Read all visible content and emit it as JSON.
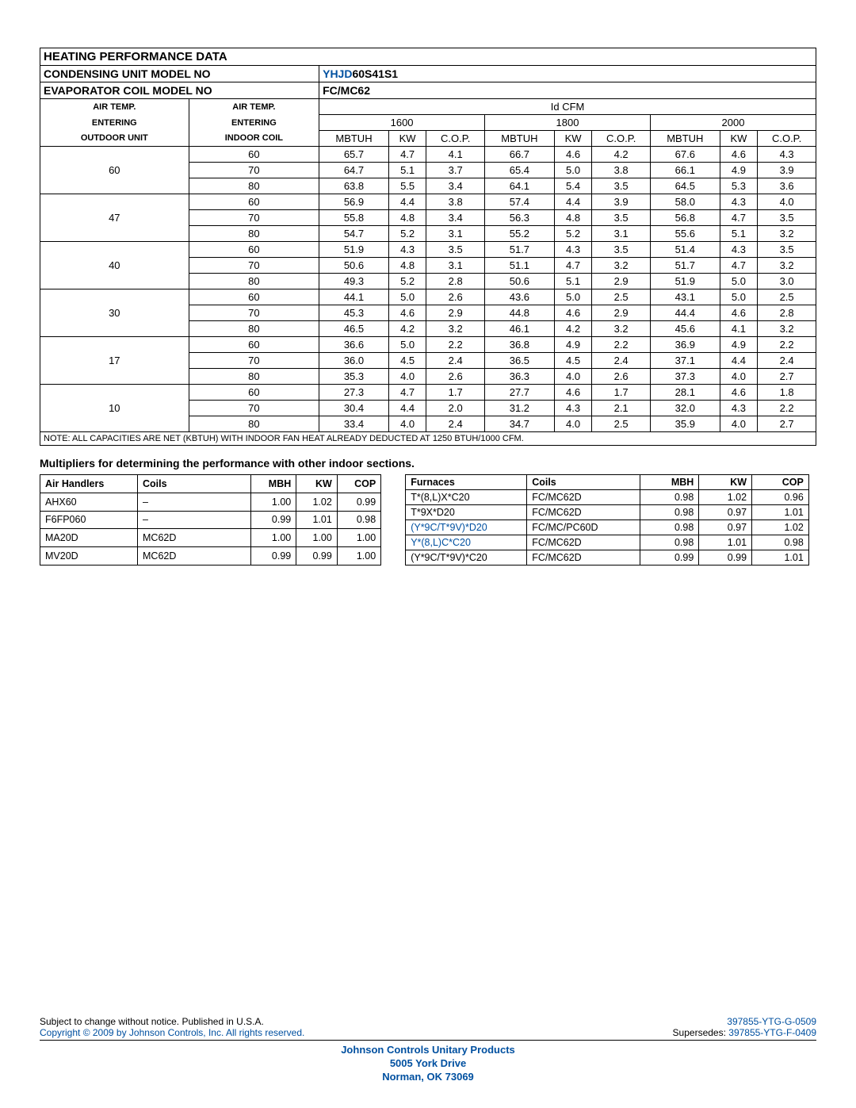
{
  "header": {
    "title": "HEATING PERFORMANCE DATA",
    "cond_label": "CONDENSING UNIT MODEL NO",
    "cond_model_blue": "YHJD",
    "cond_model_black": "60S41S1",
    "evap_label": "EVAPORATOR COIL MODEL NO",
    "evap_model": "FC/MC62",
    "air_out_l1": "AIR TEMP.",
    "air_out_l2": "ENTERING",
    "air_out_l3": "OUTDOOR UNIT",
    "air_in_l1": "AIR TEMP.",
    "air_in_l2": "ENTERING",
    "air_in_l3": "INDOOR COIL",
    "idcfm": "Id CFM",
    "cfm": [
      "1600",
      "1800",
      "2000"
    ],
    "cols": [
      "MBTUH",
      "KW",
      "C.O.P."
    ]
  },
  "groups": [
    {
      "out": "60",
      "rows": [
        {
          "in": "60",
          "v": [
            "65.7",
            "4.7",
            "4.1",
            "66.7",
            "4.6",
            "4.2",
            "67.6",
            "4.6",
            "4.3"
          ]
        },
        {
          "in": "70",
          "v": [
            "64.7",
            "5.1",
            "3.7",
            "65.4",
            "5.0",
            "3.8",
            "66.1",
            "4.9",
            "3.9"
          ]
        },
        {
          "in": "80",
          "v": [
            "63.8",
            "5.5",
            "3.4",
            "64.1",
            "5.4",
            "3.5",
            "64.5",
            "5.3",
            "3.6"
          ]
        }
      ]
    },
    {
      "out": "47",
      "rows": [
        {
          "in": "60",
          "v": [
            "56.9",
            "4.4",
            "3.8",
            "57.4",
            "4.4",
            "3.9",
            "58.0",
            "4.3",
            "4.0"
          ]
        },
        {
          "in": "70",
          "v": [
            "55.8",
            "4.8",
            "3.4",
            "56.3",
            "4.8",
            "3.5",
            "56.8",
            "4.7",
            "3.5"
          ]
        },
        {
          "in": "80",
          "v": [
            "54.7",
            "5.2",
            "3.1",
            "55.2",
            "5.2",
            "3.1",
            "55.6",
            "5.1",
            "3.2"
          ]
        }
      ]
    },
    {
      "out": "40",
      "rows": [
        {
          "in": "60",
          "v": [
            "51.9",
            "4.3",
            "3.5",
            "51.7",
            "4.3",
            "3.5",
            "51.4",
            "4.3",
            "3.5"
          ]
        },
        {
          "in": "70",
          "v": [
            "50.6",
            "4.8",
            "3.1",
            "51.1",
            "4.7",
            "3.2",
            "51.7",
            "4.7",
            "3.2"
          ]
        },
        {
          "in": "80",
          "v": [
            "49.3",
            "5.2",
            "2.8",
            "50.6",
            "5.1",
            "2.9",
            "51.9",
            "5.0",
            "3.0"
          ]
        }
      ]
    },
    {
      "out": "30",
      "rows": [
        {
          "in": "60",
          "v": [
            "44.1",
            "5.0",
            "2.6",
            "43.6",
            "5.0",
            "2.5",
            "43.1",
            "5.0",
            "2.5"
          ]
        },
        {
          "in": "70",
          "v": [
            "45.3",
            "4.6",
            "2.9",
            "44.8",
            "4.6",
            "2.9",
            "44.4",
            "4.6",
            "2.8"
          ]
        },
        {
          "in": "80",
          "v": [
            "46.5",
            "4.2",
            "3.2",
            "46.1",
            "4.2",
            "3.2",
            "45.6",
            "4.1",
            "3.2"
          ]
        }
      ]
    },
    {
      "out": "17",
      "rows": [
        {
          "in": "60",
          "v": [
            "36.6",
            "5.0",
            "2.2",
            "36.8",
            "4.9",
            "2.2",
            "36.9",
            "4.9",
            "2.2"
          ]
        },
        {
          "in": "70",
          "v": [
            "36.0",
            "4.5",
            "2.4",
            "36.5",
            "4.5",
            "2.4",
            "37.1",
            "4.4",
            "2.4"
          ]
        },
        {
          "in": "80",
          "v": [
            "35.3",
            "4.0",
            "2.6",
            "36.3",
            "4.0",
            "2.6",
            "37.3",
            "4.0",
            "2.7"
          ]
        }
      ]
    },
    {
      "out": "10",
      "rows": [
        {
          "in": "60",
          "v": [
            "27.3",
            "4.7",
            "1.7",
            "27.7",
            "4.6",
            "1.7",
            "28.1",
            "4.6",
            "1.8"
          ]
        },
        {
          "in": "70",
          "v": [
            "30.4",
            "4.4",
            "2.0",
            "31.2",
            "4.3",
            "2.1",
            "32.0",
            "4.3",
            "2.2"
          ]
        },
        {
          "in": "80",
          "v": [
            "33.4",
            "4.0",
            "2.4",
            "34.7",
            "4.0",
            "2.5",
            "35.9",
            "4.0",
            "2.7"
          ]
        }
      ]
    }
  ],
  "note": "NOTE: ALL CAPACITIES ARE NET (KBTUH) WITH INDOOR FAN HEAT ALREADY DEDUCTED AT 1250 BTUH/1000 CFM.",
  "sub": "Multipliers for determining the performance with other indoor sections.",
  "ah": {
    "h": [
      "Air Handlers",
      "Coils",
      "MBH",
      "KW",
      "COP"
    ],
    "rows": [
      {
        "c": [
          "AHX60",
          "–",
          "1.00",
          "1.02",
          "0.99"
        ]
      },
      {
        "c": [
          "F6FP060",
          "–",
          "0.99",
          "1.01",
          "0.98"
        ]
      },
      {
        "c": [
          "MA20D",
          "MC62D",
          "1.00",
          "1.00",
          "1.00"
        ]
      },
      {
        "c": [
          "MV20D",
          "MC62D",
          "0.99",
          "0.99",
          "1.00"
        ]
      }
    ]
  },
  "fu": {
    "h": [
      "Furnaces",
      "Coils",
      "MBH",
      "KW",
      "COP"
    ],
    "rows": [
      {
        "c": [
          "T*(8,L)X*C20",
          "FC/MC62D",
          "0.98",
          "1.02",
          "0.96"
        ],
        "link": false
      },
      {
        "c": [
          "T*9X*D20",
          "FC/MC62D",
          "0.98",
          "0.97",
          "1.01"
        ],
        "link": false
      },
      {
        "c": [
          "(Y*9C/T*9V)*D20",
          "FC/MC/PC60D",
          "0.98",
          "0.97",
          "1.02"
        ],
        "link": true
      },
      {
        "c": [
          "Y*(8,L)C*C20",
          "FC/MC62D",
          "0.98",
          "1.01",
          "0.98"
        ],
        "link": true
      },
      {
        "c": [
          "(Y*9C/T*9V)*C20",
          "FC/MC62D",
          "0.99",
          "0.99",
          "1.01"
        ],
        "link": false
      }
    ]
  },
  "footer": {
    "left1": "Subject to change without notice. Published in U.S.A.",
    "left2": "Copyright © 2009 by Johnson Controls, Inc. All rights reserved.",
    "right1": "397855-YTG-G-0509",
    "right2a": "Supersedes: ",
    "right2b": "397855-YTG-F-0409",
    "c1": "Johnson Controls Unitary Products",
    "c2": "5005 York Drive",
    "c3": "Norman, OK 73069"
  }
}
